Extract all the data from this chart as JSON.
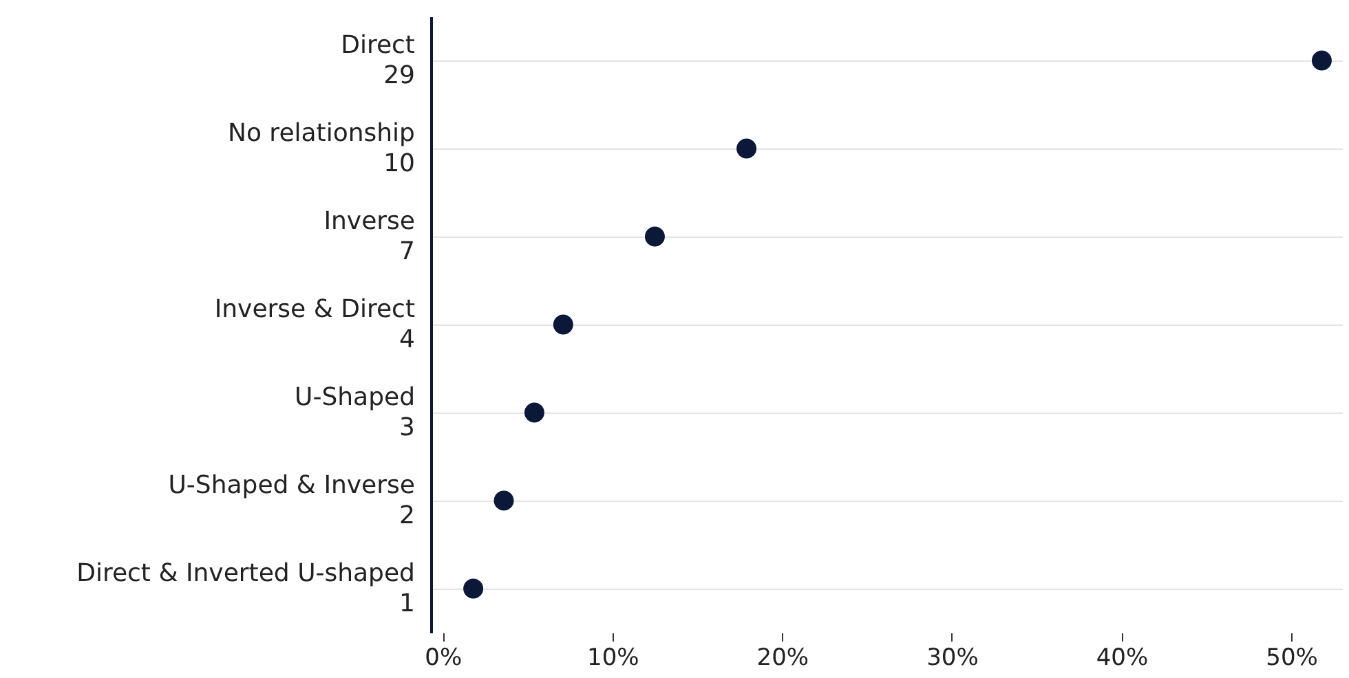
{
  "chart_data": {
    "type": "scatter",
    "categories": [
      "Direct\n29",
      "No relationship\n10",
      "Inverse\n7",
      "Inverse & Direct\n4",
      "U-Shaped\n3",
      "U-Shaped & Inverse\n2",
      "Direct & Inverted U-shaped\n1"
    ],
    "orientation": "horizontal",
    "series": [
      {
        "color": "#0b1838",
        "values": [
          51.8,
          17.9,
          12.5,
          7.1,
          5.4,
          3.6,
          1.8
        ]
      }
    ],
    "xlim": [
      -0.7,
      53
    ],
    "xticks": [
      {
        "value": 0,
        "label": "0%"
      },
      {
        "value": 10,
        "label": "10%"
      },
      {
        "value": 20,
        "label": "20%"
      },
      {
        "value": 30,
        "label": "30%"
      },
      {
        "value": 40,
        "label": "40%"
      },
      {
        "value": 50,
        "label": "50%"
      }
    ],
    "grid": "y",
    "marker": "circle"
  }
}
